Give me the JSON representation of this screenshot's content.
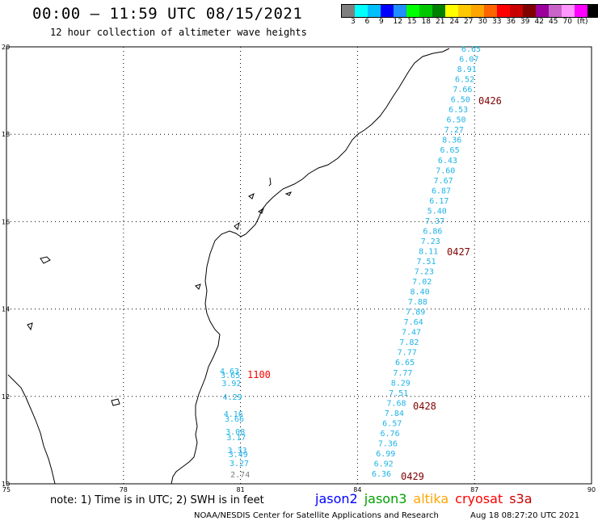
{
  "header": {
    "title": "00:00 – 11:59 UTC 08/15/2021",
    "subtitle": "12 hour collection of altimeter wave heights"
  },
  "legend": {
    "colors": [
      "#7f7f7f",
      "#00ffff",
      "#00bfff",
      "#0000ff",
      "#1f8fff",
      "#00ff00",
      "#00c800",
      "#008000",
      "#ffff00",
      "#ffc800",
      "#ffa500",
      "#ff6400",
      "#ff0000",
      "#c80000",
      "#800000",
      "#9b009b",
      "#c864c8",
      "#ff96ff",
      "#ff00ff",
      "#000000"
    ],
    "labels": [
      "3",
      "6",
      "9",
      "12",
      "15",
      "18",
      "21",
      "24",
      "27",
      "30",
      "33",
      "36",
      "39",
      "42",
      "45",
      "70",
      "(ft)"
    ]
  },
  "map": {
    "lon_range": [
      75,
      90
    ],
    "lat_range": [
      10,
      20
    ],
    "lon_ticks": [
      "75",
      "78",
      "81",
      "84",
      "87",
      "90"
    ],
    "lat_ticks": [
      "20",
      "18",
      "16",
      "14",
      "12",
      "10"
    ],
    "pass_colors": {
      "jason3_track": "#1fb3e6",
      "gray": "#7f7f7f",
      "red": "#ff0000",
      "maroon": "#800000"
    },
    "track_a_values": [
      "6.65",
      "6.07",
      "8.91",
      "6.52",
      "7.66",
      "6.50",
      "6.53",
      "6.50",
      "7.27",
      "8.36",
      "6.65",
      "6.43",
      "7.60",
      "7.67",
      "6.87",
      "6.17",
      "5.40",
      "7.37",
      "6.86",
      "7.23",
      "8.11",
      "7.51",
      "7.23",
      "7.02",
      "8.40",
      "7.88",
      "7.89",
      "7.64",
      "7.47",
      "7.82",
      "7.77",
      "6.65",
      "7.77",
      "8.29",
      "7.51",
      "7.68",
      "7.84",
      "6.57",
      "6.76",
      "7.36",
      "6.99",
      "6.92",
      "6.36"
    ],
    "track_b_values": [
      "4.63",
      "3.65",
      "3.92",
      "4.29",
      "4.16",
      "3.66",
      "3.08",
      "3.17",
      "3.33",
      "3.49",
      "3.27",
      "2.74"
    ],
    "pass_labels": [
      {
        "text": "0426",
        "color": "#800000"
      },
      {
        "text": "0427",
        "color": "#800000"
      },
      {
        "text": "0428",
        "color": "#800000"
      },
      {
        "text": "0429",
        "color": "#800000"
      },
      {
        "text": "1100",
        "color": "#ff0000"
      }
    ]
  },
  "footer": {
    "note": "note: 1) Time is in UTC; 2) SWH is in feet",
    "satellites": [
      {
        "name": "jason2",
        "color": "#0000ff"
      },
      {
        "name": "jason3",
        "color": "#00a000"
      },
      {
        "name": "altika",
        "color": "#ffa500"
      },
      {
        "name": "cryosat",
        "color": "#ff0000"
      },
      {
        "name": "s3a",
        "color": "#c80000"
      }
    ],
    "credit": "NOAA/NESDIS Center for Satellite Applications and Research",
    "timestamp": "Aug 18 08:27:20 UTC 2021"
  }
}
